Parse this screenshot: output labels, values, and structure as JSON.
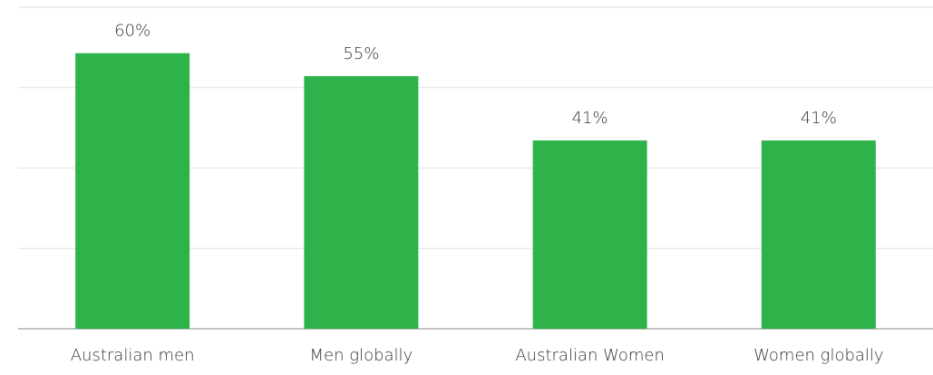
{
  "chart_data": {
    "type": "bar",
    "categories": [
      "Australian men",
      "Men globally",
      "Australian Women",
      "Women globally"
    ],
    "values": [
      60,
      55,
      41,
      41
    ],
    "value_labels": [
      "60%",
      "55%",
      "41%",
      "41%"
    ],
    "color": "#2db34a",
    "ylim": [
      0,
      70
    ],
    "yticks": [
      0,
      17.5,
      35,
      52.5,
      70
    ],
    "grid": true
  }
}
